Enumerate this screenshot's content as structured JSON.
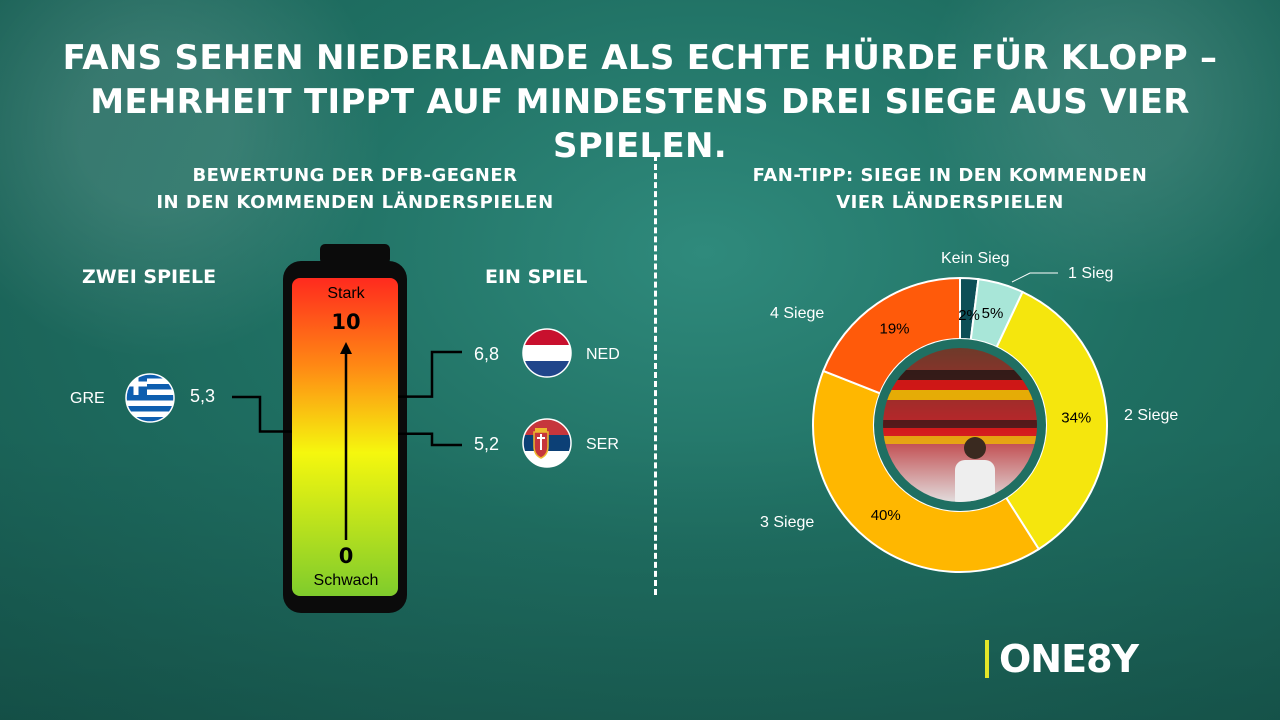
{
  "title_line1": "FANS SEHEN NIEDERLANDE ALS ECHTE HÜRDE FÜR KLOPP –",
  "title_line2": "MEHRHEIT TIPPT AUF MINDESTENS DREI SIEGE AUS VIER SPIELEN.",
  "logo": "ONE8Y",
  "colors": {
    "background": "#1f6f62",
    "kein_sieg": "#0d4e57",
    "1_sieg": "#a8e6d8",
    "2_siege": "#f5e60d",
    "3_siege": "#ffb700",
    "4_siege": "#ff5a0a",
    "logo_accent": "#e4e629"
  },
  "chart_data": [
    {
      "type": "gauge",
      "title_line1": "BEWERTUNG DER DFB-GEGNER",
      "title_line2": "IN DEN KOMMENDEN LÄNDERSPIELEN",
      "top_label": "Stark",
      "top_value": "10",
      "bottom_label": "Schwach",
      "bottom_value": "0",
      "range": [
        0,
        10
      ],
      "group_left": "ZWEI SPIELE",
      "group_right": "EIN SPIEL",
      "teams": [
        {
          "code": "GRE",
          "value": 5.3,
          "label": "5,3",
          "flag": "greece-flag-icon",
          "group": "ZWEI SPIELE"
        },
        {
          "code": "NED",
          "value": 6.8,
          "label": "6,8",
          "flag": "netherlands-flag-icon",
          "group": "EIN SPIEL"
        },
        {
          "code": "SER",
          "value": 5.2,
          "label": "5,2",
          "flag": "serbia-flag-icon",
          "group": "EIN SPIEL"
        }
      ]
    },
    {
      "type": "pie",
      "title_line1": "FAN-TIPP: SIEGE IN DEN KOMMENDEN",
      "title_line2": "VIER LÄNDERSPIELEN",
      "categories": [
        "Kein Sieg",
        "1 Sieg",
        "2 Siege",
        "3 Siege",
        "4 Siege"
      ],
      "values": [
        2,
        5,
        34,
        40,
        19
      ],
      "value_labels": [
        "2%",
        "5%",
        "34%",
        "40%",
        "19%"
      ]
    }
  ]
}
